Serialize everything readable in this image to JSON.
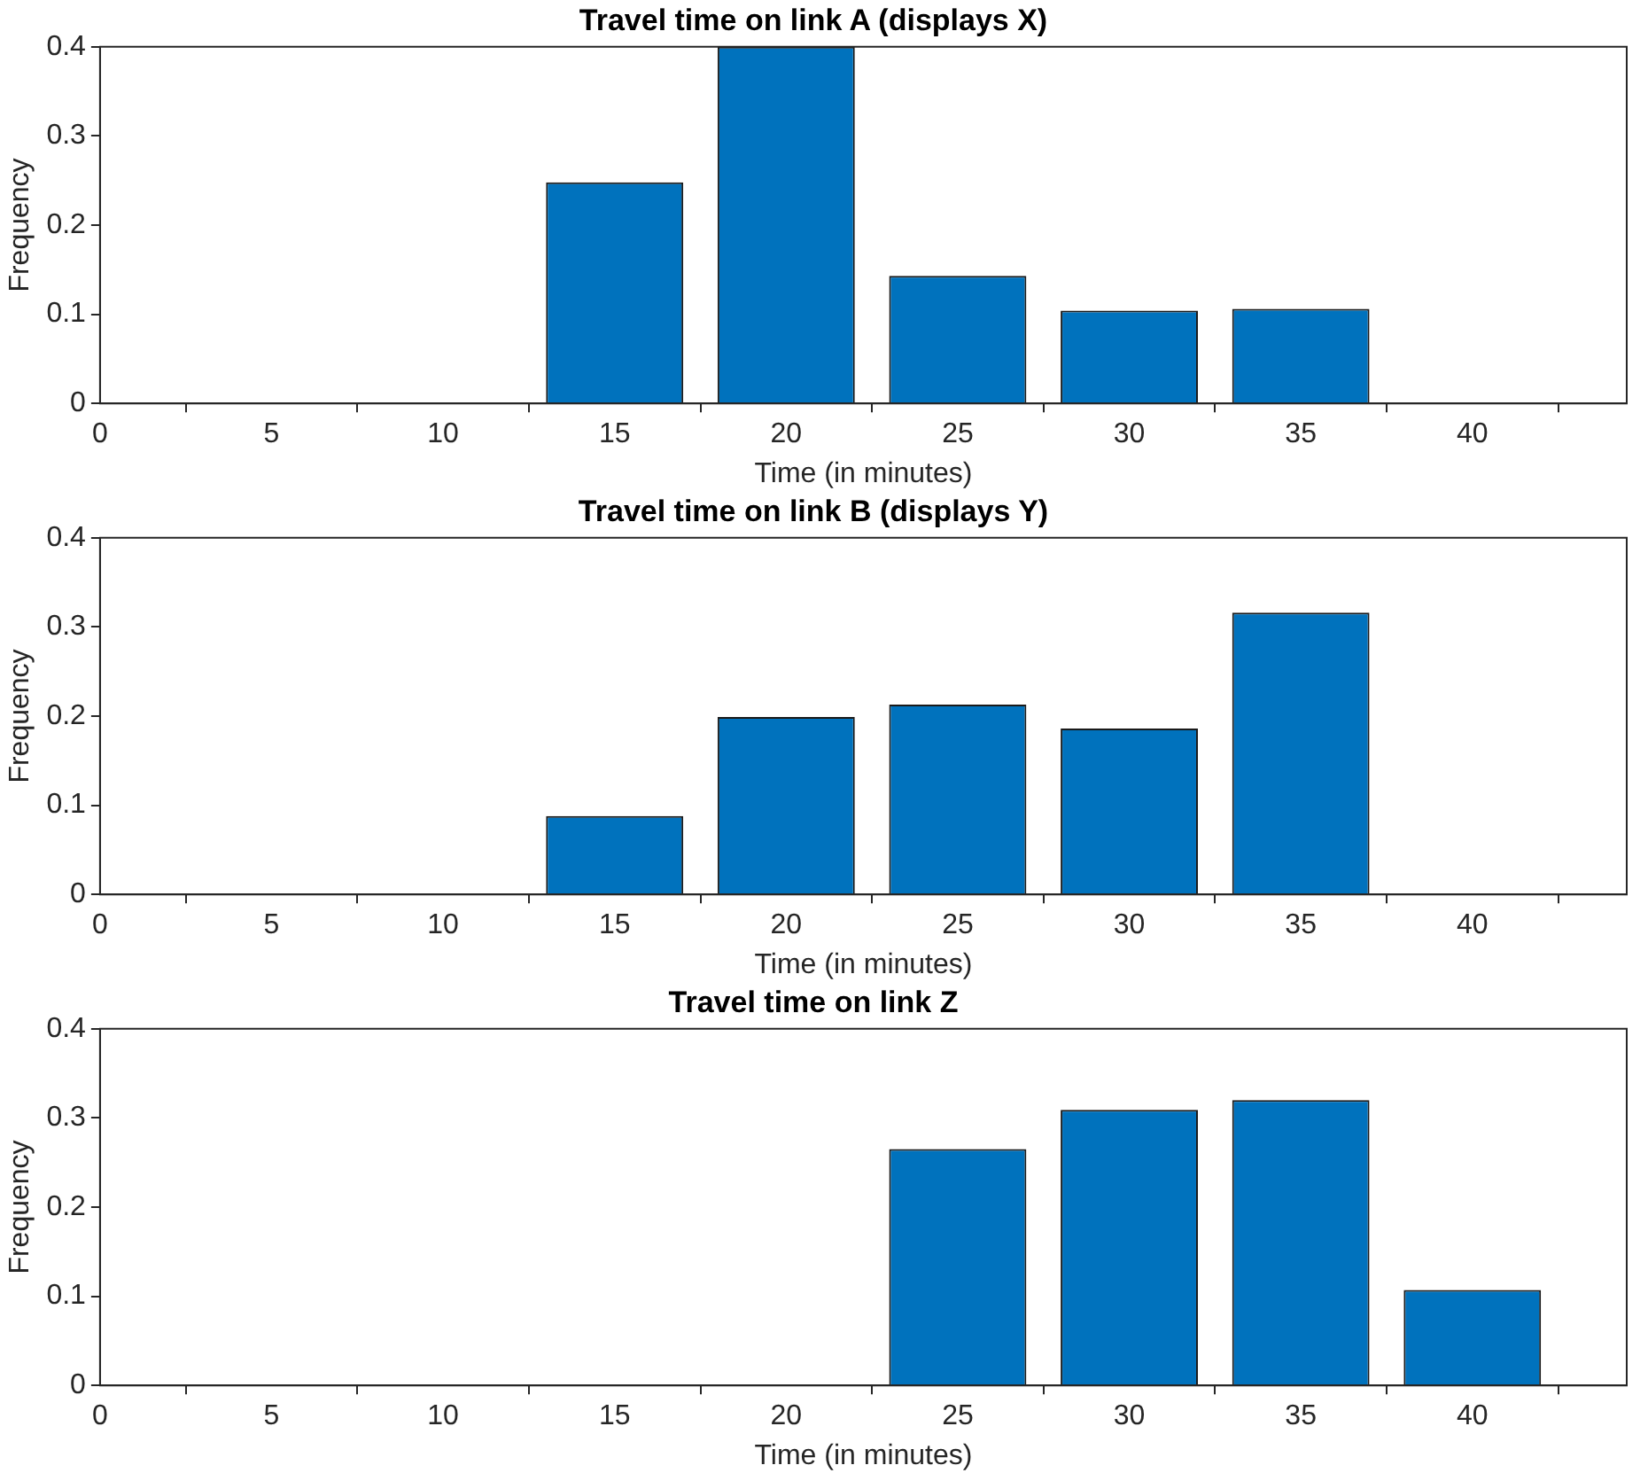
{
  "chart_data": [
    {
      "type": "bar",
      "title": "Travel time on link A (displays X)",
      "xlabel": "Time (in minutes)",
      "ylabel": "Frequency",
      "x": [
        15,
        20,
        25,
        30,
        35
      ],
      "values": [
        0.248,
        0.4,
        0.143,
        0.104,
        0.106
      ],
      "color": "#0072bd",
      "xlim": [
        0,
        44.5
      ],
      "xticks": [
        0,
        5,
        10,
        15,
        20,
        25,
        30,
        35,
        40
      ],
      "ylim": [
        0,
        0.4
      ],
      "yticks": [
        0,
        0.1,
        0.2,
        0.3,
        0.4
      ],
      "grid": false,
      "legend": false
    },
    {
      "type": "bar",
      "title": "Travel time on link B (displays Y)",
      "xlabel": "Time (in minutes)",
      "ylabel": "Frequency",
      "x": [
        15,
        20,
        25,
        30,
        35
      ],
      "values": [
        0.088,
        0.199,
        0.213,
        0.186,
        0.316
      ],
      "color": "#0072bd",
      "xlim": [
        0,
        44.5
      ],
      "xticks": [
        0,
        5,
        10,
        15,
        20,
        25,
        30,
        35,
        40
      ],
      "ylim": [
        0,
        0.4
      ],
      "yticks": [
        0,
        0.1,
        0.2,
        0.3,
        0.4
      ],
      "grid": false,
      "legend": false
    },
    {
      "type": "bar",
      "title": "Travel time on link Z",
      "xlabel": "Time (in minutes)",
      "ylabel": "Frequency",
      "x": [
        25,
        30,
        35,
        40
      ],
      "values": [
        0.265,
        0.309,
        0.32,
        0.107
      ],
      "color": "#0072bd",
      "xlim": [
        0,
        44.5
      ],
      "xticks": [
        0,
        5,
        10,
        15,
        20,
        25,
        30,
        35,
        40
      ],
      "ylim": [
        0,
        0.4
      ],
      "yticks": [
        0,
        0.1,
        0.2,
        0.3,
        0.4
      ],
      "grid": false,
      "legend": false
    }
  ]
}
